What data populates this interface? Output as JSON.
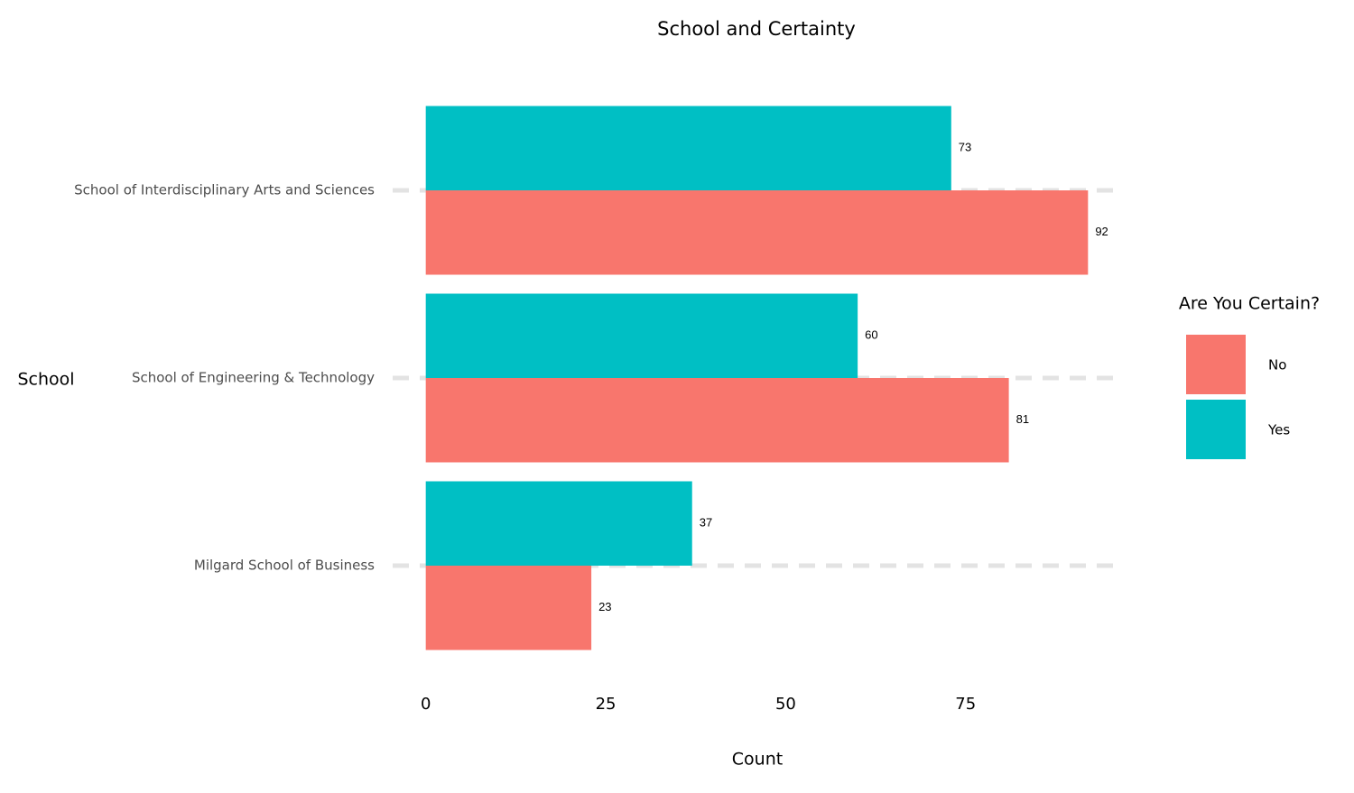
{
  "chart_data": {
    "type": "bar",
    "orientation": "horizontal",
    "title": "School and Certainty",
    "x_label": "Count",
    "y_label": "School",
    "categories": [
      "School of Interdisciplinary Arts and Sciences",
      "School of Engineering & Technology",
      "Milgard School of Business"
    ],
    "series": [
      {
        "name": "No",
        "color": "#F8766D",
        "values": [
          92,
          81,
          23
        ]
      },
      {
        "name": "Yes",
        "color": "#00BFC4",
        "values": [
          73,
          60,
          37
        ]
      }
    ],
    "legend_title": "Are You Certain?",
    "legend": "right",
    "xlim": [
      -4.6,
      96.6
    ],
    "xticks": [
      0,
      25,
      50,
      75
    ],
    "grid": true
  }
}
